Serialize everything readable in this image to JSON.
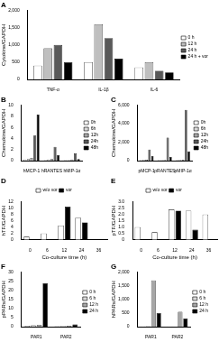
{
  "chart_data": [
    {
      "type": "bar",
      "title": "A",
      "y_label": "Cytokine/GAPDH",
      "categories": [
        "TNF-α",
        "IL-1β",
        "IL-6"
      ],
      "series": [
        {
          "name": "0 h",
          "color": "#ffffff",
          "values": [
            400,
            500,
            350
          ]
        },
        {
          "name": "12 h",
          "color": "#bfbfbf",
          "values": [
            900,
            1600,
            500
          ]
        },
        {
          "name": "24 h",
          "color": "#595959",
          "values": [
            1000,
            1200,
            250
          ]
        },
        {
          "name": "24 h + vor",
          "color": "#000000",
          "values": [
            500,
            600,
            200
          ]
        }
      ],
      "ylim": [
        0,
        2000
      ],
      "yticks": [
        0,
        500,
        1000,
        1500,
        2000
      ],
      "grid": false,
      "legend": "right"
    },
    {
      "type": "bar",
      "title": "B",
      "y_label": "Chemokine/GAPDH",
      "categories": [
        "hMCP-1",
        "hRANTES",
        "hMIP-1α"
      ],
      "series": [
        {
          "name": "0h",
          "color": "#ffffff",
          "values": [
            0.2,
            0.1,
            0.1
          ]
        },
        {
          "name": "6h",
          "color": "#d9d9d9",
          "values": [
            0.3,
            0.2,
            0.1
          ]
        },
        {
          "name": "12h",
          "color": "#a6a6a6",
          "values": [
            0.5,
            0.3,
            0.2
          ]
        },
        {
          "name": "24h",
          "color": "#595959",
          "values": [
            4.5,
            2.5,
            1.3
          ]
        },
        {
          "name": "48h",
          "color": "#000000",
          "values": [
            8.3,
            1.0,
            0.3
          ]
        }
      ],
      "ylim": [
        0,
        10
      ],
      "yticks": [
        0,
        2,
        4,
        6,
        8,
        10
      ],
      "grid": false,
      "legend": "right"
    },
    {
      "type": "bar",
      "title": "C",
      "y_label": "Chemokine/GAPDH",
      "categories": [
        "pMCP-1",
        "pRANTES",
        "pMIP-1α"
      ],
      "series": [
        {
          "name": "0h",
          "color": "#ffffff",
          "values": [
            50,
            50,
            50
          ]
        },
        {
          "name": "6h",
          "color": "#d9d9d9",
          "values": [
            80,
            60,
            80
          ]
        },
        {
          "name": "12h",
          "color": "#a6a6a6",
          "values": [
            100,
            80,
            100
          ]
        },
        {
          "name": "24h",
          "color": "#595959",
          "values": [
            1200,
            2500,
            5500
          ]
        },
        {
          "name": "48h",
          "color": "#000000",
          "values": [
            500,
            400,
            1000
          ]
        }
      ],
      "ylim": [
        0,
        6000
      ],
      "yticks": [
        0,
        2000,
        4000,
        6000
      ],
      "grid": false,
      "legend": "right"
    },
    {
      "type": "bar",
      "title": "D",
      "y_label": "hTF/GAPDH",
      "x_label": "Co-culture time (h)",
      "categories": [
        0,
        6,
        12,
        24,
        36
      ],
      "series": [
        {
          "name": "w/o vor",
          "color": "#ffffff",
          "values": [
            1,
            2,
            4.5,
            7,
            null
          ]
        },
        {
          "name": "vor",
          "color": "#000000",
          "values": [
            null,
            null,
            10.5,
            5.5,
            null
          ]
        }
      ],
      "ylim": [
        0,
        12
      ],
      "yticks": [
        0,
        2,
        4,
        6,
        8,
        10,
        12
      ],
      "grid": false,
      "legend": "top"
    },
    {
      "type": "bar",
      "title": "E",
      "y_label": "pTF/GAPDH",
      "x_label": "Co-culture time (h)",
      "categories": [
        0,
        6,
        12,
        24,
        36
      ],
      "series": [
        {
          "name": "w/o vor",
          "color": "#ffffff",
          "values": [
            1,
            0.6,
            2.4,
            2.3,
            2.0
          ]
        },
        {
          "name": "vor",
          "color": "#000000",
          "values": [
            null,
            null,
            2.3,
            0.8,
            null
          ]
        }
      ],
      "ylim": [
        0,
        3
      ],
      "yticks": [
        0,
        0.5,
        1,
        1.5,
        2,
        2.5,
        3
      ],
      "grid": false,
      "legend": "top"
    },
    {
      "type": "bar",
      "title": "F",
      "y_label": "pPARs/GAPDH",
      "categories": [
        "PAR1",
        "PAR2"
      ],
      "series": [
        {
          "name": "0 h",
          "color": "#ffffff",
          "values": [
            0.5,
            0.3
          ]
        },
        {
          "name": "6 h",
          "color": "#d9d9d9",
          "values": [
            0.8,
            0.4
          ]
        },
        {
          "name": "12 h",
          "color": "#a6a6a6",
          "values": [
            1,
            0.5
          ]
        },
        {
          "name": "24 h",
          "color": "#000000",
          "values": [
            24,
            1.2
          ]
        }
      ],
      "ylim": [
        0,
        30
      ],
      "yticks": [
        0,
        5,
        10,
        15,
        20,
        25,
        30
      ],
      "grid": false,
      "legend": "right"
    },
    {
      "type": "bar",
      "title": "G",
      "y_label": "hPARs/GAPDH",
      "categories": [
        "PAR1",
        "PAR2"
      ],
      "series": [
        {
          "name": "0 h",
          "color": "#ffffff",
          "values": [
            10,
            10
          ]
        },
        {
          "name": "6 h",
          "color": "#d9d9d9",
          "values": [
            15,
            12
          ]
        },
        {
          "name": "12 h",
          "color": "#a6a6a6",
          "values": [
            1700,
            550
          ]
        },
        {
          "name": "24 h",
          "color": "#000000",
          "values": [
            500,
            300
          ]
        }
      ],
      "ylim": [
        0,
        2000
      ],
      "yticks": [
        0,
        500,
        1000,
        1500,
        2000
      ],
      "grid": false,
      "legend": "right"
    }
  ]
}
